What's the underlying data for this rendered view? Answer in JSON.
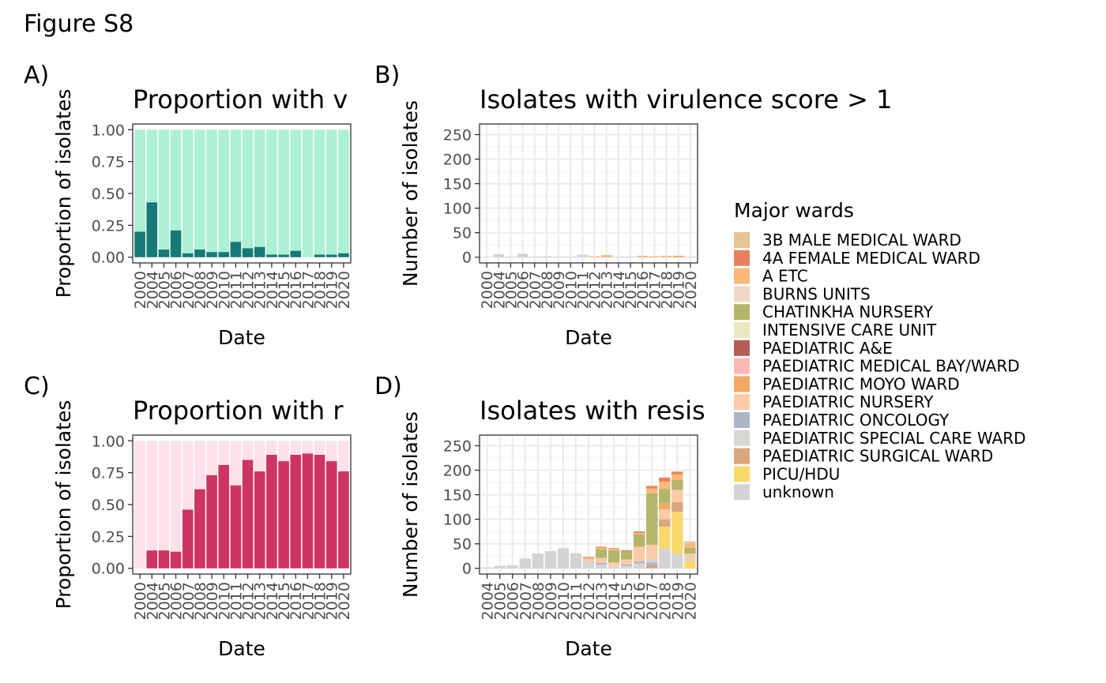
{
  "figure_title": "Figure S8",
  "colors": {
    "green_light": "#aef0d5",
    "green_dark": "#177a78",
    "pink_light": "#fde0e8",
    "pink_dark": "#cc3463",
    "grid": "#ebebeb",
    "axis_text": "#4d4d4d"
  },
  "legend": {
    "title": "Major wards",
    "items": [
      {
        "label": "3B MALE MEDICAL WARD",
        "color": "#e6c494"
      },
      {
        "label": "4A FEMALE MEDICAL WARD",
        "color": "#e8805e"
      },
      {
        "label": "A ETC",
        "color": "#f9b97a"
      },
      {
        "label": "BURNS UNITS",
        "color": "#f0d8c8"
      },
      {
        "label": "CHATINKHA NURSERY",
        "color": "#b5b56a"
      },
      {
        "label": "INTENSIVE CARE UNIT",
        "color": "#ebe8bf"
      },
      {
        "label": "PAEDIATRIC A&E",
        "color": "#b85c56"
      },
      {
        "label": "PAEDIATRIC MEDICAL BAY/WARD",
        "color": "#f9b9b5"
      },
      {
        "label": "PAEDIATRIC MOYO WARD",
        "color": "#f5a866"
      },
      {
        "label": "PAEDIATRIC NURSERY",
        "color": "#fbcba7"
      },
      {
        "label": "PAEDIATRIC ONCOLOGY",
        "color": "#adb5c8"
      },
      {
        "label": "PAEDIATRIC SPECIAL CARE WARD",
        "color": "#d9d7d2"
      },
      {
        "label": "PAEDIATRIC SURGICAL WARD",
        "color": "#d9a67f"
      },
      {
        "label": "PICU/HDU",
        "color": "#fbd86c"
      },
      {
        "label": "unknown",
        "color": "#d4d4d4"
      }
    ]
  },
  "chart_data": [
    {
      "panel": "A)",
      "type": "bar",
      "title": "Proportion with v",
      "xlabel": "Date",
      "ylabel": "Proportion of isolates",
      "ylim": [
        0,
        1
      ],
      "y_ticks": [
        "0.00",
        "0.25",
        "0.50",
        "0.75",
        "1.00"
      ],
      "y_tick_values": [
        0,
        0.25,
        0.5,
        0.75,
        1
      ],
      "x_tick_labels": [
        "2000",
        "2004",
        "2005",
        "2006",
        "2007",
        "2008",
        "2009",
        "2010",
        "2011",
        "2012",
        "2013",
        "2014",
        "2015",
        "2016",
        "2017",
        "2018",
        "2019",
        "2020"
      ],
      "categories": [
        "2000",
        "2004",
        "2005",
        "2006",
        "2007",
        "2008",
        "2009",
        "2010",
        "2011",
        "2012",
        "2013",
        "2014",
        "2015",
        "2016",
        "2017",
        "2018",
        "2019",
        "2020"
      ],
      "values": [
        0.2,
        0.43,
        0.06,
        0.21,
        0.03,
        0.06,
        0.04,
        0.04,
        0.12,
        0.07,
        0.08,
        0.02,
        0.02,
        0.05,
        0.0,
        0.02,
        0.02,
        0.03
      ],
      "background_value": 1.0,
      "fill_light": "#aef0d5",
      "fill_dark": "#177a78",
      "grid": false
    },
    {
      "panel": "B)",
      "type": "bar",
      "stacked": true,
      "title": "Isolates with virulence score > 1",
      "xlabel": "Date",
      "ylabel": "Number of isolates",
      "ylim": [
        0,
        260
      ],
      "y_ticks": [
        "0",
        "50",
        "100",
        "150",
        "200",
        "250"
      ],
      "y_tick_values": [
        0,
        50,
        100,
        150,
        200,
        250
      ],
      "x_tick_labels": [
        "2000",
        "2004",
        "2005",
        "2006",
        "2007",
        "2008",
        "2009",
        "2010",
        "2011",
        "2012",
        "2013",
        "2014",
        "2015",
        "2016",
        "2017",
        "2018",
        "2019",
        "2020"
      ],
      "categories": [
        "2000",
        "2004",
        "2005",
        "2006",
        "2007",
        "2008",
        "2009",
        "2010",
        "2011",
        "2012",
        "2013",
        "2014",
        "2015",
        "2016",
        "2017",
        "2018",
        "2019",
        "2020"
      ],
      "stacks": [
        [],
        [
          {
            "ward": "unknown",
            "value": 6
          }
        ],
        [
          {
            "ward": "unknown",
            "value": 1
          }
        ],
        [
          {
            "ward": "unknown",
            "value": 7
          }
        ],
        [
          {
            "ward": "unknown",
            "value": 1
          }
        ],
        [
          {
            "ward": "unknown",
            "value": 2
          }
        ],
        [
          {
            "ward": "unknown",
            "value": 1
          }
        ],
        [
          {
            "ward": "unknown",
            "value": 1
          }
        ],
        [
          {
            "ward": "unknown",
            "value": 5
          }
        ],
        [
          {
            "ward": "A ETC",
            "value": 2
          }
        ],
        [
          {
            "ward": "A ETC",
            "value": 2
          },
          {
            "ward": "PAEDIATRIC MOYO WARD",
            "value": 2
          }
        ],
        [
          {
            "ward": "unknown",
            "value": 1
          }
        ],
        [
          {
            "ward": "unknown",
            "value": 1
          }
        ],
        [
          {
            "ward": "A ETC",
            "value": 3
          }
        ],
        [
          {
            "ward": "A ETC",
            "value": 2
          }
        ],
        [
          {
            "ward": "A ETC",
            "value": 3
          }
        ],
        [
          {
            "ward": "PAEDIATRIC MOYO WARD",
            "value": 3
          }
        ],
        [
          {
            "ward": "unknown",
            "value": 1
          }
        ]
      ],
      "grid": true
    },
    {
      "panel": "C)",
      "type": "bar",
      "title": "Proportion with r",
      "xlabel": "Date",
      "ylabel": "Proportion of isolates",
      "ylim": [
        0,
        1
      ],
      "y_ticks": [
        "0.00",
        "0.25",
        "0.50",
        "0.75",
        "1.00"
      ],
      "y_tick_values": [
        0,
        0.25,
        0.5,
        0.75,
        1
      ],
      "x_tick_labels": [
        "2000",
        "2004",
        "2005",
        "2006",
        "2007",
        "2008",
        "2009",
        "2010",
        "2011",
        "2012",
        "2013",
        "2014",
        "2015",
        "2016",
        "2017",
        "2018",
        "2019",
        "2020"
      ],
      "categories": [
        "2000",
        "2004",
        "2005",
        "2006",
        "2007",
        "2008",
        "2009",
        "2010",
        "2011",
        "2012",
        "2013",
        "2014",
        "2015",
        "2016",
        "2017",
        "2018",
        "2019",
        "2020"
      ],
      "values": [
        0.0,
        0.14,
        0.14,
        0.13,
        0.46,
        0.62,
        0.73,
        0.81,
        0.65,
        0.85,
        0.76,
        0.89,
        0.84,
        0.89,
        0.9,
        0.89,
        0.84,
        0.76
      ],
      "background_value": 1.0,
      "fill_light": "#fde0e8",
      "fill_dark": "#cc3463",
      "grid": false
    },
    {
      "panel": "D)",
      "type": "bar",
      "stacked": true,
      "title": "Isolates with resis",
      "xlabel": "Date",
      "ylabel": "Number of isolates",
      "ylim": [
        0,
        260
      ],
      "y_ticks": [
        "0",
        "50",
        "100",
        "150",
        "200",
        "250"
      ],
      "y_tick_values": [
        0,
        50,
        100,
        150,
        200,
        250
      ],
      "x_tick_labels": [
        "2004",
        "2005",
        "2006",
        "2007",
        "2008",
        "2009",
        "2010",
        "2011",
        "2012",
        "2013",
        "2014",
        "2015",
        "2016",
        "2017",
        "2018",
        "2019",
        "2020"
      ],
      "categories": [
        "2004",
        "2005",
        "2006",
        "2007",
        "2008",
        "2009",
        "2010",
        "2011",
        "2012",
        "2013",
        "2014",
        "2015",
        "2016",
        "2017",
        "2018",
        "2019",
        "2020"
      ],
      "stacks": [
        [
          {
            "ward": "unknown",
            "value": 2
          }
        ],
        [
          {
            "ward": "unknown",
            "value": 5
          }
        ],
        [
          {
            "ward": "unknown",
            "value": 6
          }
        ],
        [
          {
            "ward": "unknown",
            "value": 20
          }
        ],
        [
          {
            "ward": "unknown",
            "value": 30
          }
        ],
        [
          {
            "ward": "unknown",
            "value": 35
          }
        ],
        [
          {
            "ward": "unknown",
            "value": 41
          }
        ],
        [
          {
            "ward": "unknown",
            "value": 31
          }
        ],
        [
          {
            "ward": "unknown",
            "value": 16
          },
          {
            "ward": "PAEDIATRIC NURSERY",
            "value": 3
          },
          {
            "ward": "A ETC",
            "value": 2
          },
          {
            "ward": "4A FEMALE MEDICAL WARD",
            "value": 2
          }
        ],
        [
          {
            "ward": "unknown",
            "value": 8
          },
          {
            "ward": "PAEDIATRIC ONCOLOGY",
            "value": 3
          },
          {
            "ward": "PAEDIATRIC NURSERY",
            "value": 10
          },
          {
            "ward": "CHATINKHA NURSERY",
            "value": 18
          },
          {
            "ward": "A ETC",
            "value": 3
          },
          {
            "ward": "4A FEMALE MEDICAL WARD",
            "value": 2
          }
        ],
        [
          {
            "ward": "PAEDIATRIC SPECIAL CARE WARD",
            "value": 5
          },
          {
            "ward": "PAEDIATRIC NURSERY",
            "value": 7
          },
          {
            "ward": "CHATINKHA NURSERY",
            "value": 25
          },
          {
            "ward": "A ETC",
            "value": 3
          },
          {
            "ward": "4A FEMALE MEDICAL WARD",
            "value": 1
          }
        ],
        [
          {
            "ward": "unknown",
            "value": 5
          },
          {
            "ward": "PAEDIATRIC ONCOLOGY",
            "value": 3
          },
          {
            "ward": "PAEDIATRIC NURSERY",
            "value": 10
          },
          {
            "ward": "CHATINKHA NURSERY",
            "value": 17
          },
          {
            "ward": "4A FEMALE MEDICAL WARD",
            "value": 2
          }
        ],
        [
          {
            "ward": "unknown",
            "value": 10
          },
          {
            "ward": "PAEDIATRIC ONCOLOGY",
            "value": 4
          },
          {
            "ward": "PAEDIATRIC NURSERY",
            "value": 30
          },
          {
            "ward": "CHATINKHA NURSERY",
            "value": 25
          },
          {
            "ward": "A ETC",
            "value": 3
          },
          {
            "ward": "4A FEMALE MEDICAL WARD",
            "value": 3
          }
        ],
        [
          {
            "ward": "PAEDIATRIC SURGICAL WARD",
            "value": 3
          },
          {
            "ward": "4A FEMALE MEDICAL WARD",
            "value": 2
          },
          {
            "ward": "PAEDIATRIC ONCOLOGY",
            "value": 7
          },
          {
            "ward": "unknown",
            "value": 6
          },
          {
            "ward": "PAEDIATRIC NURSERY",
            "value": 30
          },
          {
            "ward": "CHATINKHA NURSERY",
            "value": 105
          },
          {
            "ward": "A ETC",
            "value": 10
          },
          {
            "ward": "4A FEMALE MEDICAL WARD",
            "value": 5
          }
        ],
        [
          {
            "ward": "unknown",
            "value": 40
          },
          {
            "ward": "PICU/HDU",
            "value": 45
          },
          {
            "ward": "PAEDIATRIC SURGICAL WARD",
            "value": 15
          },
          {
            "ward": "PAEDIATRIC NURSERY",
            "value": 20
          },
          {
            "ward": "PAEDIATRIC MOYO WARD",
            "value": 12
          },
          {
            "ward": "CHATINKHA NURSERY",
            "value": 30
          },
          {
            "ward": "A ETC",
            "value": 15
          },
          {
            "ward": "4A FEMALE MEDICAL WARD",
            "value": 8
          }
        ],
        [
          {
            "ward": "unknown",
            "value": 30
          },
          {
            "ward": "PICU/HDU",
            "value": 85
          },
          {
            "ward": "PAEDIATRIC SURGICAL WARD",
            "value": 20
          },
          {
            "ward": "PAEDIATRIC NURSERY",
            "value": 25
          },
          {
            "ward": "CHATINKHA NURSERY",
            "value": 20
          },
          {
            "ward": "A ETC",
            "value": 12
          },
          {
            "ward": "4A FEMALE MEDICAL WARD",
            "value": 5
          }
        ],
        [
          {
            "ward": "PICU/HDU",
            "value": 15
          },
          {
            "ward": "unknown",
            "value": 5
          },
          {
            "ward": "PAEDIATRIC NURSERY",
            "value": 10
          },
          {
            "ward": "CHATINKHA NURSERY",
            "value": 12
          },
          {
            "ward": "A ETC",
            "value": 8
          },
          {
            "ward": "3B MALE MEDICAL WARD",
            "value": 5
          }
        ]
      ],
      "grid": true
    }
  ]
}
